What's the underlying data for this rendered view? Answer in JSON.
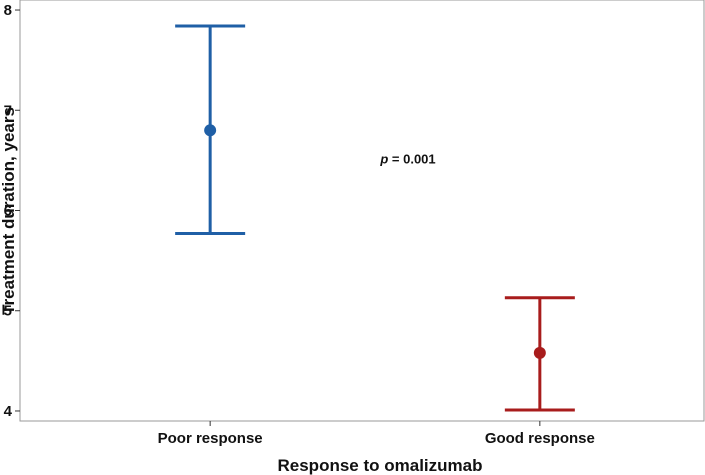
{
  "chart_data": {
    "type": "scatter",
    "subtype": "point-with-error-bars",
    "title": "",
    "xlabel": "Response to omalizumab",
    "ylabel": "Treatment duration, years",
    "categories": [
      "Poor response",
      "Good response"
    ],
    "ylim": [
      3.9,
      8.1
    ],
    "yticks": [
      4,
      5,
      6,
      7,
      8
    ],
    "grid": false,
    "legend": "none",
    "series": [
      {
        "category": "Poor response",
        "mean": 6.8,
        "lower": 5.77,
        "upper": 7.84,
        "color": "#1f5fa6"
      },
      {
        "category": "Good response",
        "mean": 4.58,
        "lower": 4.01,
        "upper": 5.13,
        "color": "#a81c1c"
      }
    ],
    "annotation": {
      "prefix": "p",
      "text": " = 0.001",
      "x_position": 0.5,
      "y_value": 6.52
    }
  }
}
